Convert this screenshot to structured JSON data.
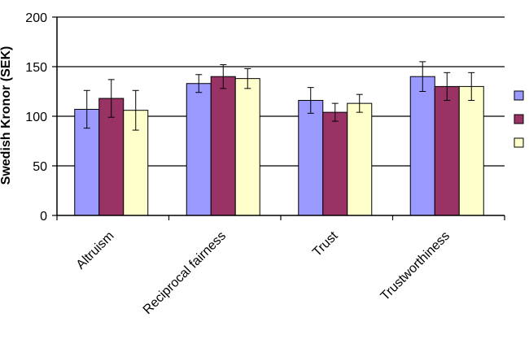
{
  "chart_data": {
    "type": "bar",
    "title": "",
    "xlabel": "",
    "ylabel": "Swedish Kronor (SEK)",
    "ylim": [
      0,
      200
    ],
    "yticks": [
      0,
      50,
      100,
      150,
      200
    ],
    "grid": true,
    "legend_position": "right",
    "categories": [
      "Altruism",
      "Reciprocal fairness",
      "Trust",
      "Trustworthiness"
    ],
    "series": [
      {
        "color": "#9999ff",
        "values": [
          107,
          133,
          116,
          140
        ],
        "errors": [
          19,
          9,
          13,
          15
        ]
      },
      {
        "color": "#993366",
        "values": [
          118,
          140,
          104,
          130
        ],
        "errors": [
          19,
          12,
          9,
          14
        ]
      },
      {
        "color": "#ffffcc",
        "values": [
          106,
          138,
          113,
          130
        ],
        "errors": [
          20,
          10,
          9,
          14
        ]
      }
    ]
  }
}
